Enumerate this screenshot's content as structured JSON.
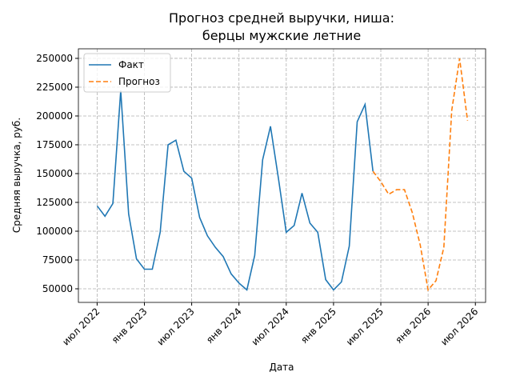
{
  "chart_data": {
    "type": "line",
    "title": [
      "Прогноз средней выручки, ниша:",
      "берцы мужские летние"
    ],
    "x_label": "Дата",
    "y_label": "Средняя выручка, руб.",
    "x": [
      "2022-07",
      "2022-08",
      "2022-09",
      "2022-10",
      "2022-11",
      "2022-12",
      "2023-01",
      "2023-02",
      "2023-03",
      "2023-04",
      "2023-05",
      "2023-06",
      "2023-07",
      "2023-08",
      "2023-09",
      "2023-10",
      "2023-11",
      "2023-12",
      "2024-01",
      "2024-02",
      "2024-03",
      "2024-04",
      "2024-05",
      "2024-06",
      "2024-07",
      "2024-08",
      "2024-09",
      "2024-10",
      "2024-11",
      "2024-12",
      "2025-01",
      "2025-02",
      "2025-03",
      "2025-04",
      "2025-05",
      "2025-06",
      "2025-07",
      "2025-08",
      "2025-09",
      "2025-10",
      "2025-11",
      "2025-12",
      "2026-01",
      "2026-02",
      "2026-03",
      "2026-04",
      "2026-05",
      "2026-06"
    ],
    "series": [
      {
        "name": "Факт",
        "color": "#1f77b4",
        "linestyle": "solid",
        "values": [
          122000,
          113000,
          124000,
          222000,
          115000,
          76000,
          67000,
          67000,
          99000,
          175000,
          179000,
          152000,
          146000,
          112000,
          96000,
          86000,
          78000,
          63000,
          55000,
          49000,
          79000,
          162000,
          191000,
          146000,
          99000,
          105000,
          133000,
          107000,
          99000,
          58000,
          49000,
          56000,
          87000,
          195000,
          210000,
          152000,
          null,
          null,
          null,
          null,
          null,
          null,
          null,
          null,
          null,
          null,
          null,
          null
        ]
      },
      {
        "name": "Прогноз",
        "color": "#ff7f0e",
        "linestyle": "dashed",
        "values": [
          null,
          null,
          null,
          null,
          null,
          null,
          null,
          null,
          null,
          null,
          null,
          null,
          null,
          null,
          null,
          null,
          null,
          null,
          null,
          null,
          null,
          null,
          null,
          null,
          null,
          null,
          null,
          null,
          null,
          null,
          null,
          null,
          null,
          null,
          null,
          152000,
          143000,
          132000,
          136000,
          136000,
          116000,
          88000,
          49000,
          57000,
          86000,
          205000,
          250000,
          196000
        ]
      }
    ],
    "xlim": [
      "2022-04-20",
      "2026-08-10"
    ],
    "xticks": [
      {
        "value": "2022-07",
        "label": "июл 2022"
      },
      {
        "value": "2023-01",
        "label": "янв 2023"
      },
      {
        "value": "2023-07",
        "label": "июл 2023"
      },
      {
        "value": "2024-01",
        "label": "янв 2024"
      },
      {
        "value": "2024-07",
        "label": "июл 2024"
      },
      {
        "value": "2025-01",
        "label": "янв 2025"
      },
      {
        "value": "2025-07",
        "label": "июл 2025"
      },
      {
        "value": "2026-01",
        "label": "янв 2026"
      },
      {
        "value": "2026-07",
        "label": "июл 2026"
      }
    ],
    "ylim": [
      38200,
      258300
    ],
    "yticks": [
      50000,
      75000,
      100000,
      125000,
      150000,
      175000,
      200000,
      225000,
      250000
    ],
    "grid": true,
    "legend": "upper left"
  }
}
